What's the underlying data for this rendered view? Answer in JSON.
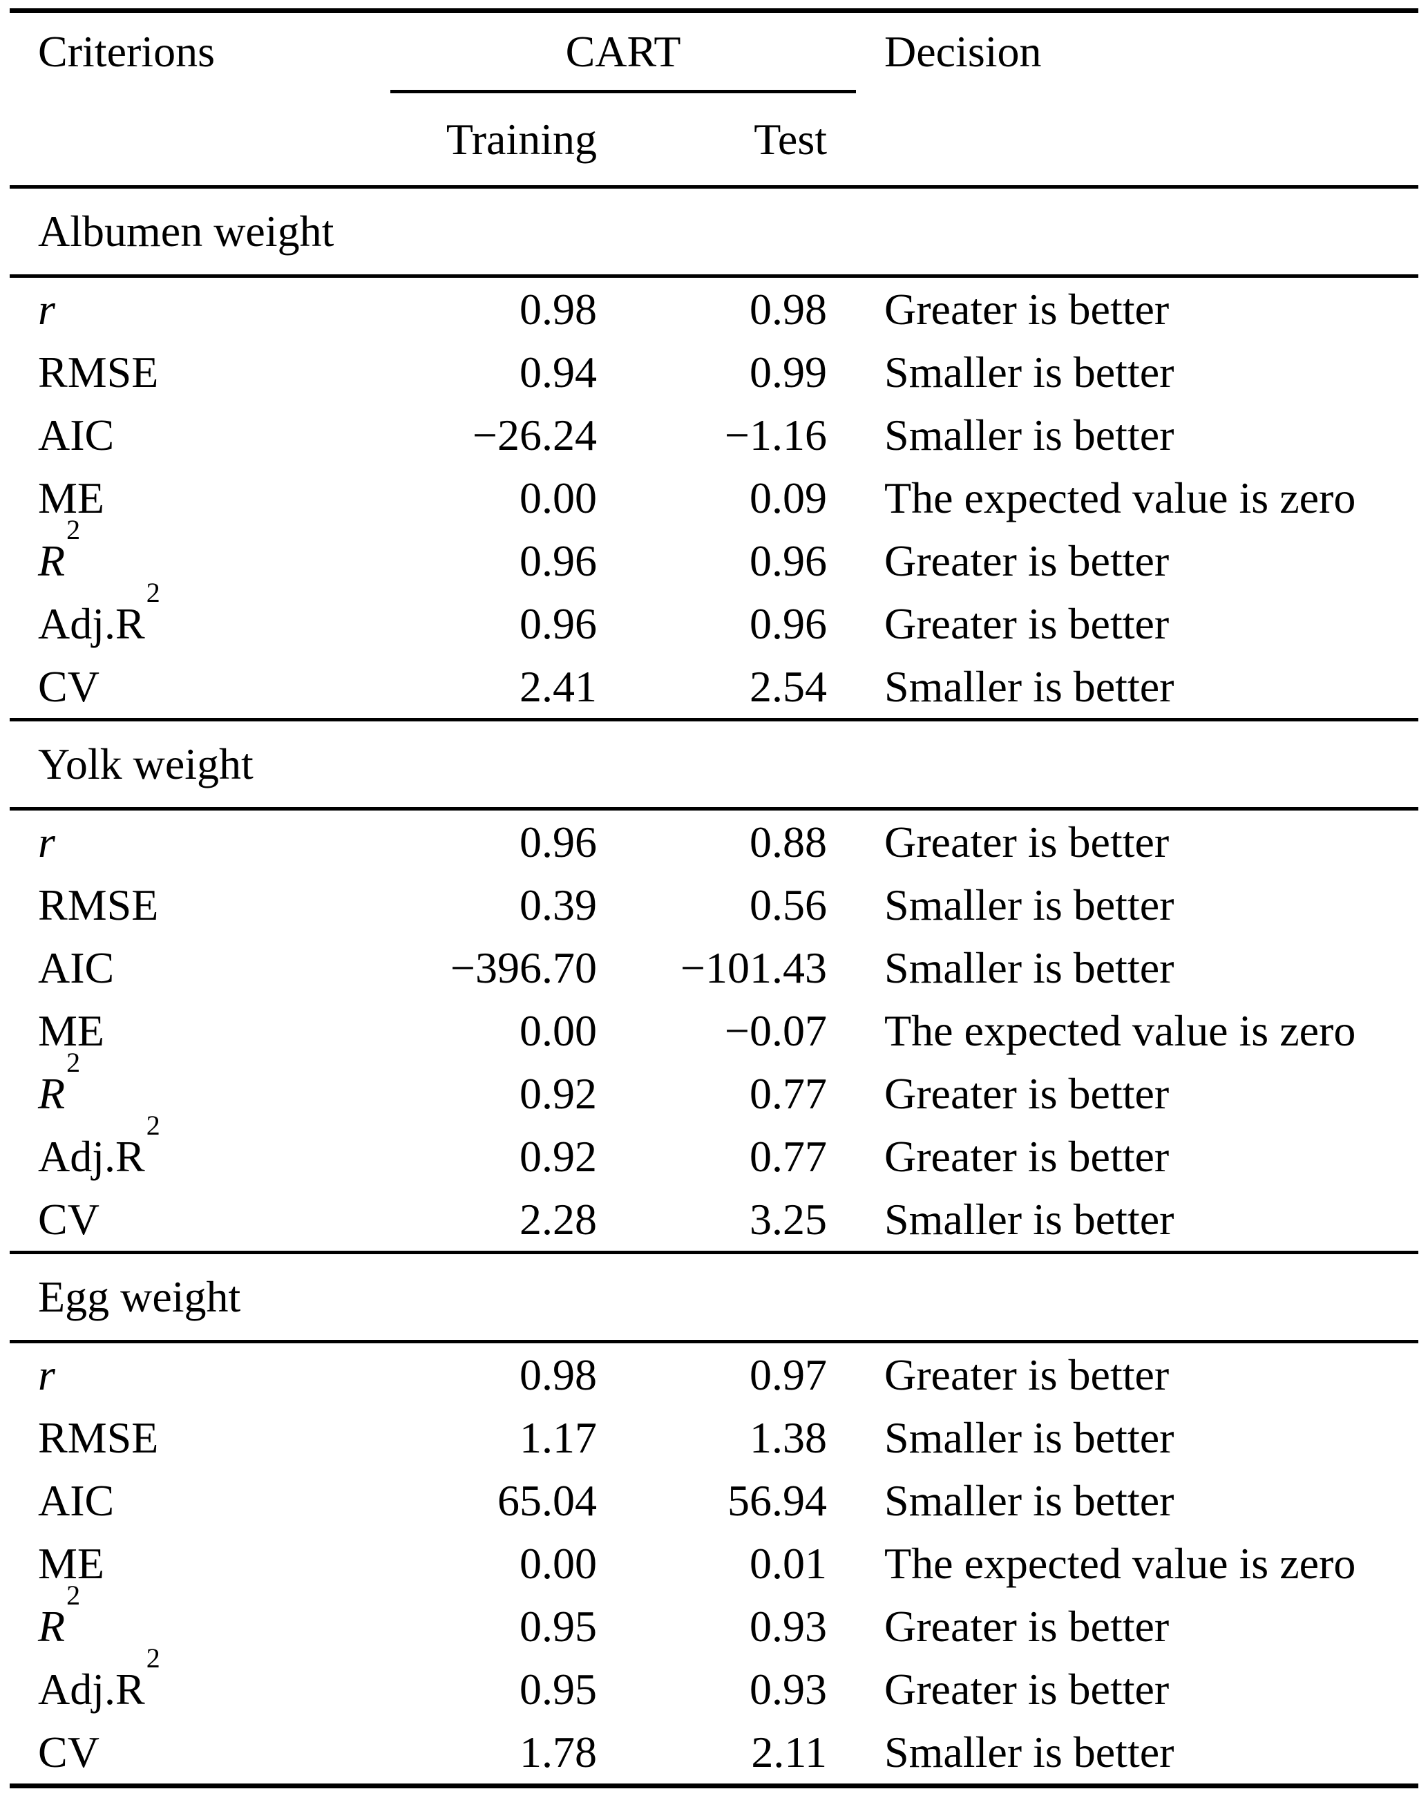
{
  "header": {
    "criterions": "Criterions",
    "cart": "CART",
    "training": "Training",
    "test": "Test",
    "decision": "Decision"
  },
  "sections": [
    {
      "title": "Albumen weight",
      "rows": [
        {
          "criterion": "r",
          "italic": true,
          "sup": "",
          "training": "0.98",
          "test": "0.98",
          "decision": "Greater is better"
        },
        {
          "criterion": "RMSE",
          "italic": false,
          "sup": "",
          "training": "0.94",
          "test": "0.99",
          "decision": "Smaller is better"
        },
        {
          "criterion": "AIC",
          "italic": false,
          "sup": "",
          "training": "−26.24",
          "test": "−1.16",
          "decision": "Smaller is better"
        },
        {
          "criterion": "ME",
          "italic": false,
          "sup": "",
          "training": "0.00",
          "test": "0.09",
          "decision": "The expected value is zero"
        },
        {
          "criterion": "R",
          "italic": true,
          "sup": "2",
          "training": "0.96",
          "test": "0.96",
          "decision": "Greater is better"
        },
        {
          "criterion": "Adj.R",
          "italic": false,
          "sup": "2",
          "training": "0.96",
          "test": "0.96",
          "decision": "Greater is better"
        },
        {
          "criterion": "CV",
          "italic": false,
          "sup": "",
          "training": "2.41",
          "test": "2.54",
          "decision": "Smaller is better"
        }
      ]
    },
    {
      "title": "Yolk weight",
      "rows": [
        {
          "criterion": "r",
          "italic": true,
          "sup": "",
          "training": "0.96",
          "test": "0.88",
          "decision": "Greater is better"
        },
        {
          "criterion": "RMSE",
          "italic": false,
          "sup": "",
          "training": "0.39",
          "test": "0.56",
          "decision": "Smaller is better"
        },
        {
          "criterion": "AIC",
          "italic": false,
          "sup": "",
          "training": "−396.70",
          "test": "−101.43",
          "decision": "Smaller is better"
        },
        {
          "criterion": "ME",
          "italic": false,
          "sup": "",
          "training": "0.00",
          "test": "−0.07",
          "decision": "The expected value is zero"
        },
        {
          "criterion": "R",
          "italic": true,
          "sup": "2",
          "training": "0.92",
          "test": "0.77",
          "decision": "Greater is better"
        },
        {
          "criterion": "Adj.R",
          "italic": false,
          "sup": "2",
          "training": "0.92",
          "test": "0.77",
          "decision": "Greater is better"
        },
        {
          "criterion": "CV",
          "italic": false,
          "sup": "",
          "training": "2.28",
          "test": "3.25",
          "decision": "Smaller is better"
        }
      ]
    },
    {
      "title": "Egg weight",
      "rows": [
        {
          "criterion": "r",
          "italic": true,
          "sup": "",
          "training": "0.98",
          "test": "0.97",
          "decision": "Greater is better"
        },
        {
          "criterion": "RMSE",
          "italic": false,
          "sup": "",
          "training": "1.17",
          "test": "1.38",
          "decision": "Smaller is better"
        },
        {
          "criterion": "AIC",
          "italic": false,
          "sup": "",
          "training": "65.04",
          "test": "56.94",
          "decision": "Smaller is better"
        },
        {
          "criterion": "ME",
          "italic": false,
          "sup": "",
          "training": "0.00",
          "test": "0.01",
          "decision": "The expected value is zero"
        },
        {
          "criterion": "R",
          "italic": true,
          "sup": "2",
          "training": "0.95",
          "test": "0.93",
          "decision": "Greater is better"
        },
        {
          "criterion": "Adj.R",
          "italic": false,
          "sup": "2",
          "training": "0.95",
          "test": "0.93",
          "decision": "Greater is better"
        },
        {
          "criterion": "CV",
          "italic": false,
          "sup": "",
          "training": "1.78",
          "test": "2.11",
          "decision": "Smaller is better"
        }
      ]
    }
  ]
}
